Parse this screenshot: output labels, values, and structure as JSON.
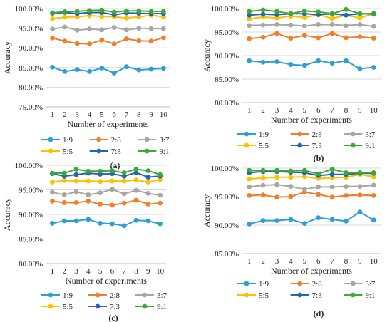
{
  "chart_data": [
    {
      "panel_label": "(a)",
      "type": "line",
      "title": "",
      "xlabel": "Number of experiments",
      "ylabel": "Accuracy",
      "x": [
        1,
        2,
        3,
        4,
        5,
        6,
        7,
        8,
        9,
        10
      ],
      "y_ticks": [
        "75.00%",
        "80.00%",
        "85.00%",
        "90.00%",
        "95.00%",
        "100.00%"
      ],
      "ylim": [
        75,
        100
      ],
      "grid": true,
      "legend_position": "bottom",
      "series": [
        {
          "name": "1:9",
          "color": "#2e9fd6",
          "values": [
            85.1,
            84.0,
            84.5,
            84.0,
            84.9,
            83.6,
            85.2,
            84.4,
            84.6,
            84.8
          ]
        },
        {
          "name": "2:8",
          "color": "#f07f2c",
          "values": [
            92.5,
            91.7,
            91.1,
            91.0,
            92.0,
            91.0,
            92.3,
            91.8,
            91.7,
            92.6
          ]
        },
        {
          "name": "3:7",
          "color": "#a6a6a6",
          "values": [
            94.8,
            95.3,
            94.5,
            94.8,
            94.6,
            95.2,
            94.6,
            95.0,
            94.9,
            94.9
          ]
        },
        {
          "name": "5:5",
          "color": "#ffc000",
          "values": [
            97.4,
            97.8,
            97.9,
            98.2,
            98.0,
            97.9,
            97.6,
            97.9,
            98.3,
            97.9
          ]
        },
        {
          "name": "7:3",
          "color": "#2663b0",
          "values": [
            98.8,
            99.0,
            98.7,
            99.0,
            99.0,
            98.4,
            98.9,
            98.8,
            98.7,
            98.7
          ]
        },
        {
          "name": "9:1",
          "color": "#3aa935",
          "values": [
            98.9,
            99.2,
            99.3,
            99.5,
            99.6,
            99.1,
            99.4,
            99.4,
            99.3,
            99.3
          ]
        }
      ]
    },
    {
      "panel_label": "(b)",
      "type": "line",
      "title": "",
      "xlabel": "Number of experiments",
      "ylabel": "Accuracy",
      "x": [
        1,
        2,
        3,
        4,
        5,
        6,
        7,
        8,
        9,
        10
      ],
      "y_ticks": [
        "80.00%",
        "85.00%",
        "90.00%",
        "95.00%",
        "100.00%"
      ],
      "ylim": [
        80,
        100
      ],
      "grid": true,
      "legend_position": "bottom",
      "series": [
        {
          "name": "1:9",
          "color": "#2e9fd6",
          "values": [
            88.9,
            88.6,
            88.7,
            88.1,
            87.9,
            88.9,
            88.4,
            88.9,
            87.2,
            87.5
          ]
        },
        {
          "name": "2:8",
          "color": "#f07f2c",
          "values": [
            93.6,
            93.9,
            94.7,
            93.7,
            94.3,
            93.8,
            94.7,
            93.8,
            94.0,
            93.7
          ]
        },
        {
          "name": "3:7",
          "color": "#a6a6a6",
          "values": [
            96.4,
            96.5,
            96.6,
            96.5,
            96.3,
            96.6,
            96.6,
            96.4,
            96.6,
            96.2
          ]
        },
        {
          "name": "5:5",
          "color": "#ffc000",
          "values": [
            97.8,
            98.2,
            98.0,
            98.4,
            98.1,
            98.7,
            97.9,
            98.6,
            98.0,
            98.9
          ]
        },
        {
          "name": "7:3",
          "color": "#2663b0",
          "values": [
            98.6,
            98.8,
            98.7,
            98.9,
            98.9,
            98.7,
            98.9,
            98.6,
            98.9,
            98.9
          ]
        },
        {
          "name": "9:1",
          "color": "#3aa935",
          "values": [
            99.4,
            99.7,
            99.4,
            98.9,
            99.5,
            99.3,
            98.9,
            99.8,
            98.9,
            98.8
          ]
        }
      ]
    },
    {
      "panel_label": "(c)",
      "type": "line",
      "title": "",
      "xlabel": "Number of experiments",
      "ylabel": "Accuracy",
      "x": [
        1,
        2,
        3,
        4,
        5,
        6,
        7,
        8,
        9,
        10
      ],
      "y_ticks": [
        "80.00%",
        "85.00%",
        "90.00%",
        "95.00%",
        "100.00%"
      ],
      "ylim": [
        80,
        100
      ],
      "grid": true,
      "legend_position": "bottom",
      "series": [
        {
          "name": "1:9",
          "color": "#2e9fd6",
          "values": [
            88.2,
            88.7,
            88.7,
            89.0,
            88.2,
            88.1,
            87.7,
            88.8,
            88.7,
            88.1
          ]
        },
        {
          "name": "2:8",
          "color": "#f07f2c",
          "values": [
            92.7,
            92.4,
            92.4,
            92.7,
            92.1,
            91.9,
            92.3,
            92.9,
            92.1,
            92.3
          ]
        },
        {
          "name": "3:7",
          "color": "#a6a6a6",
          "values": [
            94.5,
            94.0,
            94.6,
            94.0,
            94.4,
            95.1,
            94.2,
            94.9,
            94.3,
            93.9
          ]
        },
        {
          "name": "5:5",
          "color": "#ffc000",
          "values": [
            96.6,
            96.9,
            96.8,
            96.8,
            96.7,
            96.8,
            96.8,
            97.0,
            96.6,
            97.1
          ]
        },
        {
          "name": "7:3",
          "color": "#2663b0",
          "values": [
            98.3,
            97.8,
            98.1,
            98.4,
            98.2,
            98.3,
            97.8,
            98.5,
            97.6,
            97.8
          ]
        },
        {
          "name": "9:1",
          "color": "#3aa935",
          "values": [
            98.4,
            98.4,
            99.2,
            98.8,
            98.8,
            98.9,
            98.5,
            99.2,
            98.9,
            98.1
          ]
        }
      ]
    },
    {
      "panel_label": "(d)",
      "type": "line",
      "title": "",
      "xlabel": "Number of experiments",
      "ylabel": "Accuracy",
      "x": [
        1,
        2,
        3,
        4,
        5,
        6,
        7,
        8,
        9,
        10
      ],
      "y_ticks": [
        "85.00%",
        "90.00%",
        "95.00%",
        "100.00%"
      ],
      "ylim": [
        85,
        100
      ],
      "grid": true,
      "legend_position": "bottom",
      "series": [
        {
          "name": "1:9",
          "color": "#2e9fd6",
          "values": [
            90.2,
            90.8,
            90.8,
            91.0,
            90.3,
            91.3,
            91.0,
            90.7,
            92.3,
            90.9
          ]
        },
        {
          "name": "2:8",
          "color": "#f07f2c",
          "values": [
            95.2,
            95.3,
            94.9,
            95.0,
            95.8,
            95.4,
            94.9,
            95.2,
            95.3,
            95.2
          ]
        },
        {
          "name": "3:7",
          "color": "#a6a6a6",
          "values": [
            96.7,
            97.0,
            97.1,
            96.8,
            96.3,
            96.7,
            96.7,
            96.8,
            96.8,
            97.0
          ]
        },
        {
          "name": "5:5",
          "color": "#ffc000",
          "values": [
            98.1,
            98.3,
            98.4,
            98.4,
            98.5,
            98.2,
            98.3,
            98.4,
            98.9,
            98.5
          ]
        },
        {
          "name": "7:3",
          "color": "#2663b0",
          "values": [
            99.2,
            99.4,
            99.4,
            99.3,
            99.2,
            98.7,
            98.9,
            98.9,
            99.1,
            99.1
          ]
        },
        {
          "name": "9:1",
          "color": "#3aa935",
          "values": [
            99.6,
            99.6,
            99.6,
            99.5,
            99.6,
            99.0,
            99.8,
            99.2,
            99.2,
            99.2
          ]
        }
      ]
    }
  ]
}
